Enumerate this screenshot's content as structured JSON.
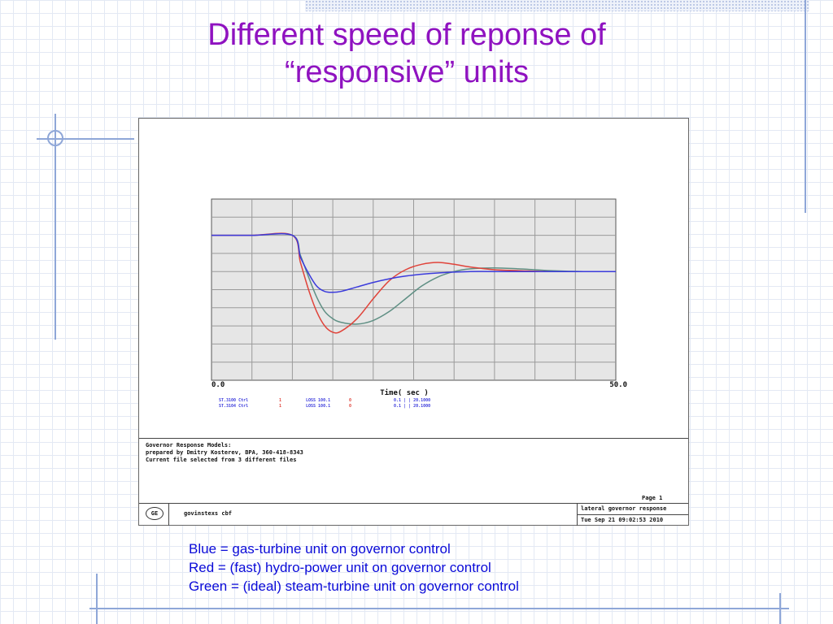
{
  "slide": {
    "title_line1": "Different speed of reponse of",
    "title_line2": "“responsive” units",
    "caption": [
      "Blue = gas-turbine unit on governor control",
      "Red = (fast) hydro-power unit on governor control",
      "Green = (ideal) steam-turbine unit on governor control"
    ]
  },
  "figure": {
    "info_lines": [
      "Governor Response Models:",
      "prepared by Dmitry Kosterev, BPA, 360-418-8343",
      "Current file selected from 3 different files"
    ],
    "footer_file": "govinstexs cbf",
    "page_label": "Page 1",
    "right_title": "lateral governor response",
    "right_date": "Tue Sep 21 09:02:53 2010",
    "logo_text": "GE",
    "legend": {
      "col1": [
        "ST.3100 Ctrl",
        "ST.3104 Ctrl"
      ],
      "col2": [
        "1",
        "1"
      ],
      "col3": [
        "LOSS 100.1",
        "LOSS 100.1"
      ],
      "col4": [
        "0",
        "0"
      ],
      "col5": [
        "0.1  |  |  20.1000",
        "0.1  |  |  20.1000"
      ]
    },
    "colors": {
      "blue": "#3b3bdc",
      "red": "#e0433a",
      "green": "#5f8f84",
      "plot_bg": "#e6e6e6",
      "grid": "#9a9a9a"
    }
  },
  "chart_data": {
    "type": "line",
    "title": "",
    "xlabel": "Time( sec )",
    "ylabel": "",
    "xlim": [
      0.0,
      50.0
    ],
    "xticks": [
      "0.0",
      "50.0"
    ],
    "ylim": [
      0,
      10
    ],
    "grid": true,
    "series": [
      {
        "name": "Blue",
        "color": "#3b3bdc",
        "x": [
          0,
          5,
          10,
          11,
          12,
          13,
          14,
          15,
          16,
          18,
          20,
          22,
          24,
          26,
          28,
          30,
          32,
          35,
          40,
          45,
          50
        ],
        "y": [
          8.0,
          8.0,
          8.0,
          6.8,
          5.9,
          5.2,
          4.9,
          4.85,
          4.9,
          5.15,
          5.4,
          5.6,
          5.75,
          5.85,
          5.92,
          5.97,
          6.0,
          6.0,
          6.0,
          6.0,
          6.0
        ]
      },
      {
        "name": "Red",
        "color": "#e0433a",
        "x": [
          0,
          5,
          10,
          11,
          12,
          13,
          14,
          15,
          16,
          18,
          20,
          22,
          24,
          26,
          28,
          30,
          32,
          35,
          38,
          42,
          46,
          50
        ],
        "y": [
          8.0,
          8.0,
          8.0,
          6.5,
          5.0,
          3.8,
          3.0,
          2.65,
          2.7,
          3.4,
          4.5,
          5.5,
          6.1,
          6.4,
          6.5,
          6.4,
          6.25,
          6.1,
          6.05,
          6.0,
          6.0,
          6.0
        ]
      },
      {
        "name": "Green",
        "color": "#5f8f84",
        "x": [
          0,
          5,
          10,
          11,
          12,
          13,
          14,
          15,
          16,
          18,
          20,
          22,
          24,
          26,
          28,
          30,
          32,
          35,
          38,
          42,
          46,
          50
        ],
        "y": [
          8.0,
          8.0,
          8.0,
          6.9,
          5.7,
          4.6,
          3.8,
          3.4,
          3.2,
          3.1,
          3.3,
          3.8,
          4.5,
          5.2,
          5.7,
          6.0,
          6.15,
          6.2,
          6.15,
          6.05,
          6.0,
          6.0
        ]
      }
    ]
  }
}
